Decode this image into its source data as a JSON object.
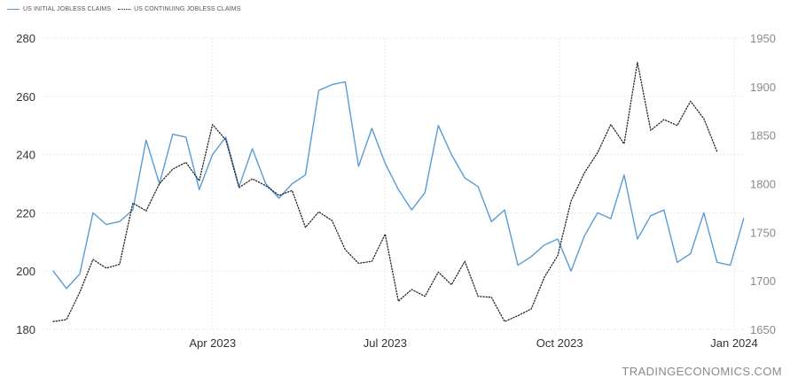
{
  "chart_data": {
    "type": "line",
    "legend": {
      "placement": "top-left",
      "entries": [
        "US INITIAL JOBLESS CLAIMS",
        "US CONTINUING JOBLESS CLAIMS"
      ]
    },
    "x_tick_labels": [
      "Apr 2023",
      "Jul 2023",
      "Oct 2023",
      "Jan 2024"
    ],
    "y_left": {
      "ticks": [
        180,
        200,
        220,
        240,
        260,
        280
      ],
      "range": [
        180,
        280
      ]
    },
    "y_right": {
      "ticks": [
        1650,
        1700,
        1750,
        1800,
        1850,
        1900,
        1950
      ],
      "range": [
        1650,
        1950
      ]
    },
    "grid": true,
    "series": [
      {
        "name": "US INITIAL JOBLESS CLAIMS",
        "axis": "left",
        "color": "#5b9bd5",
        "style": "solid",
        "dates": [
          "2023-01-07",
          "2023-01-14",
          "2023-01-21",
          "2023-01-28",
          "2023-02-04",
          "2023-02-11",
          "2023-02-18",
          "2023-02-25",
          "2023-03-04",
          "2023-03-11",
          "2023-03-18",
          "2023-03-25",
          "2023-04-01",
          "2023-04-08",
          "2023-04-15",
          "2023-04-22",
          "2023-04-29",
          "2023-05-06",
          "2023-05-13",
          "2023-05-20",
          "2023-05-27",
          "2023-06-03",
          "2023-06-10",
          "2023-06-17",
          "2023-06-24",
          "2023-07-01",
          "2023-07-08",
          "2023-07-15",
          "2023-07-22",
          "2023-07-29",
          "2023-08-05",
          "2023-08-12",
          "2023-08-19",
          "2023-08-26",
          "2023-09-02",
          "2023-09-09",
          "2023-09-16",
          "2023-09-23",
          "2023-09-30",
          "2023-10-07",
          "2023-10-14",
          "2023-10-21",
          "2023-10-28",
          "2023-11-04",
          "2023-11-11",
          "2023-11-18",
          "2023-11-25",
          "2023-12-02",
          "2023-12-09",
          "2023-12-16",
          "2023-12-23",
          "2023-12-30",
          "2024-01-06"
        ],
        "values": [
          200,
          194,
          199,
          220,
          216,
          217,
          221,
          245,
          230,
          247,
          246,
          228,
          240,
          246,
          229,
          242,
          230,
          225,
          230,
          233,
          262,
          264,
          265,
          236,
          249,
          237,
          228,
          221,
          227,
          250,
          240,
          232,
          229,
          217,
          221,
          202,
          205,
          209,
          211,
          200,
          212,
          220,
          218,
          233,
          211,
          219,
          221,
          203,
          206,
          220,
          203,
          202,
          218
        ]
      },
      {
        "name": "US CONTINUING JOBLESS CLAIMS",
        "axis": "right",
        "color": "#222222",
        "style": "dotted",
        "dates": [
          "2023-01-07",
          "2023-01-14",
          "2023-01-21",
          "2023-01-28",
          "2023-02-04",
          "2023-02-11",
          "2023-02-18",
          "2023-02-25",
          "2023-03-04",
          "2023-03-11",
          "2023-03-18",
          "2023-03-25",
          "2023-04-01",
          "2023-04-08",
          "2023-04-15",
          "2023-04-22",
          "2023-04-29",
          "2023-05-06",
          "2023-05-13",
          "2023-05-20",
          "2023-05-27",
          "2023-06-03",
          "2023-06-10",
          "2023-06-17",
          "2023-06-24",
          "2023-07-01",
          "2023-07-08",
          "2023-07-15",
          "2023-07-22",
          "2023-07-29",
          "2023-08-05",
          "2023-08-12",
          "2023-08-19",
          "2023-08-26",
          "2023-09-02",
          "2023-09-09",
          "2023-09-16",
          "2023-09-23",
          "2023-09-30",
          "2023-10-07",
          "2023-10-14",
          "2023-10-21",
          "2023-10-28",
          "2023-11-04",
          "2023-11-11",
          "2023-11-18",
          "2023-11-25",
          "2023-12-02",
          "2023-12-09",
          "2023-12-16",
          "2023-12-23"
        ],
        "values": [
          1658,
          1660,
          1688,
          1722,
          1713,
          1717,
          1780,
          1772,
          1800,
          1815,
          1822,
          1803,
          1861,
          1845,
          1796,
          1805,
          1798,
          1788,
          1793,
          1755,
          1771,
          1762,
          1732,
          1718,
          1720,
          1748,
          1679,
          1691,
          1684,
          1709,
          1696,
          1720,
          1684,
          1683,
          1658,
          1664,
          1671,
          1704,
          1726,
          1782,
          1811,
          1832,
          1861,
          1841,
          1925,
          1855,
          1866,
          1860,
          1885,
          1867,
          1833
        ]
      }
    ]
  },
  "watermark": "TRADINGECONOMICS.COM"
}
